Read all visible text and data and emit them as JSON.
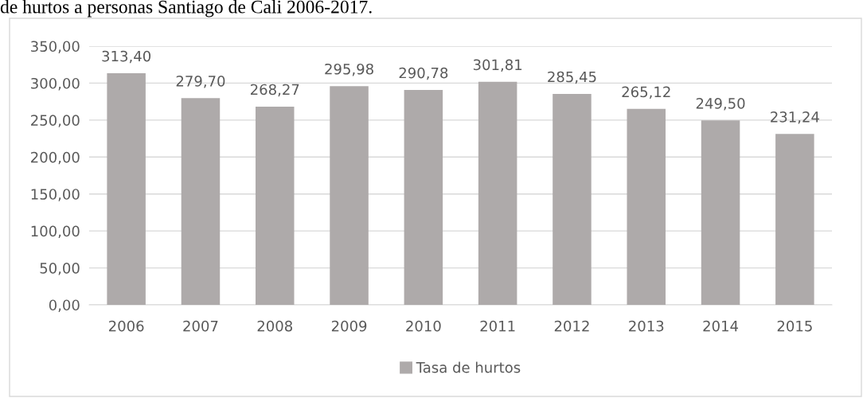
{
  "chart_data": {
    "type": "bar",
    "title": "de hurtos a personas Santiago de Cali 2006-2017.",
    "categories": [
      "2006",
      "2007",
      "2008",
      "2009",
      "2010",
      "2011",
      "2012",
      "2013",
      "2014",
      "2015"
    ],
    "series": [
      {
        "name": "Tasa de hurtos",
        "color": "#aeaaaa",
        "values": [
          313.4,
          279.7,
          268.27,
          295.98,
          290.78,
          301.81,
          285.45,
          265.12,
          249.5,
          231.24
        ],
        "value_labels": [
          "313,40",
          "279,70",
          "268,27",
          "295,98",
          "290,78",
          "301,81",
          "285,45",
          "265,12",
          "249,50",
          "231,24"
        ]
      }
    ],
    "ylim": [
      0,
      350
    ],
    "yticks": [
      {
        "value": 0,
        "label": "0,00"
      },
      {
        "value": 50,
        "label": "50,00"
      },
      {
        "value": 100,
        "label": "100,00"
      },
      {
        "value": 150,
        "label": "150,00"
      },
      {
        "value": 200,
        "label": "200,00"
      },
      {
        "value": 250,
        "label": "250,00"
      },
      {
        "value": 300,
        "label": "300,00"
      },
      {
        "value": 350,
        "label": "350,00"
      }
    ],
    "grid": "y",
    "legend": "bottom"
  }
}
